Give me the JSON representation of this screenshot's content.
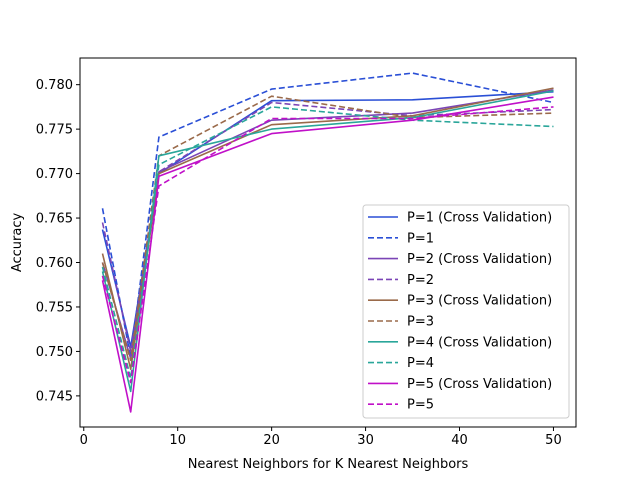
{
  "chart_data": {
    "type": "line",
    "title": "",
    "xlabel": "Nearest Neighbors for K Nearest Neighbors",
    "ylabel": "Accuracy",
    "xlim": [
      -0.4,
      52.4
    ],
    "ylim": [
      0.7415,
      0.783
    ],
    "xticks": [
      0,
      10,
      20,
      30,
      40,
      50
    ],
    "xtick_labels": [
      "0",
      "10",
      "20",
      "30",
      "40",
      "50"
    ],
    "yticks": [
      0.745,
      0.75,
      0.755,
      0.76,
      0.765,
      0.77,
      0.775,
      0.78
    ],
    "ytick_labels": [
      "0.745",
      "0.750",
      "0.755",
      "0.760",
      "0.765",
      "0.770",
      "0.775",
      "0.780"
    ],
    "grid": false,
    "legend_position": "lower right",
    "x": [
      2,
      5,
      8,
      20,
      35,
      50
    ],
    "series": [
      {
        "name": "P=1 (Cross Validation)",
        "color": "#2a4fd6",
        "dash": "solid",
        "values": [
          0.7637,
          0.7505,
          0.77,
          0.7782,
          0.7783,
          0.7792
        ]
      },
      {
        "name": "P=1",
        "color": "#2a4fd6",
        "dash": "dashed",
        "values": [
          0.7661,
          0.7493,
          0.7741,
          0.7795,
          0.7813,
          0.778
        ]
      },
      {
        "name": "P=2 (Cross Validation)",
        "color": "#7b45b6",
        "dash": "solid",
        "values": [
          0.76,
          0.7492,
          0.7702,
          0.776,
          0.7768,
          0.7794
        ]
      },
      {
        "name": "P=2",
        "color": "#7b45b6",
        "dash": "dashed",
        "values": [
          0.7645,
          0.75,
          0.7702,
          0.778,
          0.7765,
          0.7772
        ]
      },
      {
        "name": "P=3 (Cross Validation)",
        "color": "#9a6a4a",
        "dash": "solid",
        "values": [
          0.761,
          0.748,
          0.77,
          0.7755,
          0.7765,
          0.7796
        ]
      },
      {
        "name": "P=3",
        "color": "#9a6a4a",
        "dash": "dashed",
        "values": [
          0.76,
          0.749,
          0.772,
          0.7787,
          0.7763,
          0.7768
        ]
      },
      {
        "name": "P=4 (Cross Validation)",
        "color": "#2aa69a",
        "dash": "solid",
        "values": [
          0.759,
          0.7455,
          0.772,
          0.775,
          0.7763,
          0.7793
        ]
      },
      {
        "name": "P=4",
        "color": "#2aa69a",
        "dash": "dashed",
        "values": [
          0.7595,
          0.747,
          0.771,
          0.7775,
          0.776,
          0.7753
        ]
      },
      {
        "name": "P=5 (Cross Validation)",
        "color": "#c010c8",
        "dash": "solid",
        "values": [
          0.758,
          0.7432,
          0.7697,
          0.7745,
          0.776,
          0.7786
        ]
      },
      {
        "name": "P=5",
        "color": "#c010c8",
        "dash": "dashed",
        "values": [
          0.7585,
          0.7465,
          0.7686,
          0.7762,
          0.7762,
          0.7775
        ]
      }
    ]
  }
}
